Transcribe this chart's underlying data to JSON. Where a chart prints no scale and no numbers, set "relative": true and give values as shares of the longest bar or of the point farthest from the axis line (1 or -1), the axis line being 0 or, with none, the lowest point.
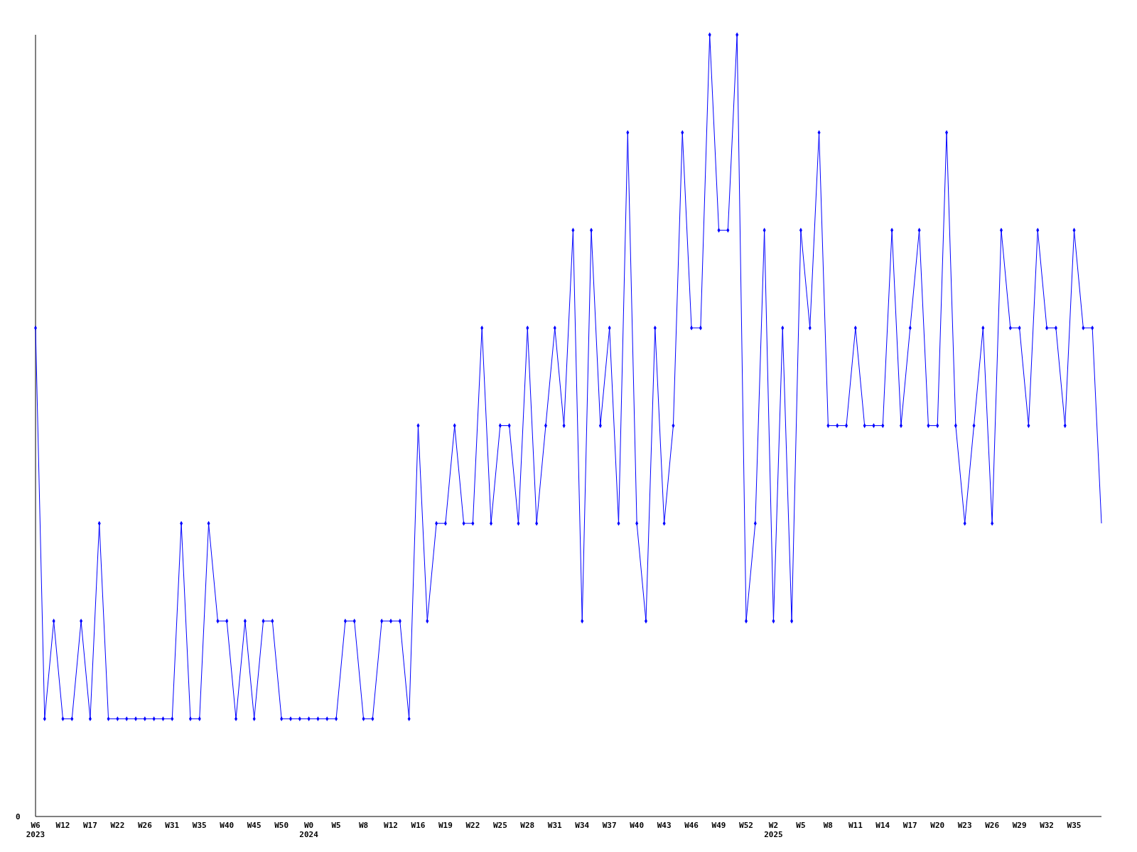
{
  "chart_data": {
    "type": "line",
    "relative": true,
    "marker": "diamond",
    "line_style": "solid",
    "grid": false,
    "annotations": [
      "0"
    ],
    "categories": [
      "W6\n2023",
      null,
      null,
      "W12",
      null,
      null,
      "W17",
      null,
      null,
      "W22",
      null,
      null,
      "W26",
      null,
      null,
      "W31",
      null,
      null,
      "W35",
      null,
      null,
      "W40",
      null,
      null,
      "W45",
      null,
      null,
      "W50",
      null,
      null,
      "W0\n2024",
      null,
      null,
      "W5",
      null,
      null,
      "W8",
      null,
      null,
      "W12",
      null,
      null,
      "W16",
      null,
      null,
      "W19",
      null,
      null,
      "W22",
      null,
      null,
      "W25",
      null,
      null,
      "W28",
      null,
      null,
      "W31",
      null,
      null,
      "W34",
      null,
      null,
      "W37",
      null,
      null,
      "W40",
      null,
      null,
      "W43",
      null,
      null,
      "W46",
      null,
      null,
      "W49",
      null,
      null,
      "W52",
      null,
      null,
      "W2\n2025",
      null,
      null,
      "W5",
      null,
      null,
      "W8",
      null,
      null,
      "W11",
      null,
      null,
      "W14",
      null,
      null,
      "W17",
      null,
      null,
      "W20",
      null,
      null,
      "W23",
      null,
      null,
      "W26",
      null,
      null,
      "W29",
      null,
      null,
      "W32",
      null,
      null,
      "W35",
      null,
      null,
      null
    ],
    "series": [
      {
        "color": "#0000ff",
        "values": [
          0.625,
          0.125,
          0.25,
          0.125,
          0.125,
          0.25,
          0.125,
          0.375,
          0.125,
          0.125,
          0.125,
          0.125,
          0.125,
          0.125,
          0.125,
          0.125,
          0.375,
          0.125,
          0.125,
          0.375,
          0.25,
          0.25,
          0.125,
          0.25,
          0.125,
          0.25,
          0.25,
          0.125,
          0.125,
          0.125,
          0.125,
          0.125,
          0.125,
          0.125,
          0.25,
          0.25,
          0.125,
          0.125,
          0.25,
          0.25,
          0.25,
          0.125,
          0.5,
          0.25,
          0.375,
          0.375,
          0.5,
          0.375,
          0.375,
          0.625,
          0.375,
          0.5,
          0.5,
          0.375,
          0.625,
          0.375,
          0.5,
          0.625,
          0.5,
          0.75,
          0.25,
          0.75,
          0.5,
          0.625,
          0.375,
          0.875,
          0.375,
          0.25,
          0.625,
          0.375,
          0.5,
          0.875,
          0.625,
          0.625,
          1,
          0.75,
          0.75,
          1,
          0.25,
          0.375,
          0.75,
          0.25,
          0.625,
          0.25,
          0.75,
          0.625,
          0.875,
          0.5,
          0.5,
          0.5,
          0.625,
          0.5,
          0.5,
          0.5,
          0.75,
          0.5,
          0.625,
          0.75,
          0.5,
          0.5,
          0.875,
          0.5,
          0.375,
          0.5,
          0.625,
          0.375,
          0.75,
          0.625,
          0.625,
          0.5,
          0.75,
          0.625,
          0.625,
          0.5,
          0.75,
          0.625,
          0.625,
          0.375
        ]
      }
    ]
  }
}
